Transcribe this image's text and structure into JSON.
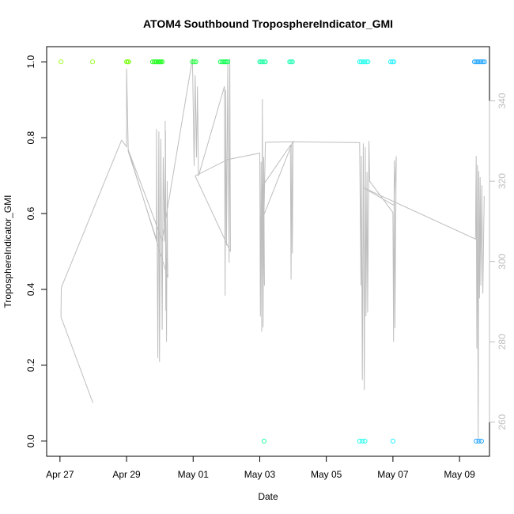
{
  "chart_data": {
    "type": "scatter",
    "title": "ATOM4 Southbound TroposphereIndicator_GMI",
    "xlabel": "Date",
    "ylabel": "TroposphereIndicator_GMI",
    "x_ticks": [
      {
        "day": 0,
        "label": "Apr 27"
      },
      {
        "day": 2,
        "label": "Apr 29"
      },
      {
        "day": 4,
        "label": "May 01"
      },
      {
        "day": 6,
        "label": "May 03"
      },
      {
        "day": 8,
        "label": "May 05"
      },
      {
        "day": 10,
        "label": "May 07"
      },
      {
        "day": 12,
        "label": "May 09"
      }
    ],
    "xlim": [
      -0.4,
      12.9
    ],
    "ylim": [
      -0.04,
      1.04
    ],
    "y_ticks": [
      "0.0",
      "0.2",
      "0.4",
      "0.6",
      "0.8",
      "1.0"
    ],
    "y2lim": [
      251.5,
      353.5
    ],
    "y2_ticks": [
      "260",
      "280",
      "300",
      "320",
      "340"
    ],
    "grid": false,
    "colors": {
      "secondary_line": "#bebebe",
      "axes": "#000000",
      "secondary_axis": "#bebebe"
    },
    "series": [
      {
        "points": [
          {
            "x": 0.03,
            "y": 1,
            "color": "#a6ff2e"
          },
          {
            "x": 0.98,
            "y": 1,
            "color": "#a0ff30"
          },
          {
            "x": 2.0,
            "y": 1,
            "color": "#7fff1a"
          },
          {
            "x": 2.04,
            "y": 1,
            "color": "#7fff1a"
          },
          {
            "x": 2.06,
            "y": 1,
            "color": "#7fff1a"
          },
          {
            "x": 2.78,
            "y": 1,
            "color": "#33ff2e"
          },
          {
            "x": 2.83,
            "y": 1,
            "color": "#33ff2e"
          },
          {
            "x": 2.87,
            "y": 1,
            "color": "#33ff2e"
          },
          {
            "x": 2.9,
            "y": 1,
            "color": "#33ff2e"
          },
          {
            "x": 2.94,
            "y": 1,
            "color": "#33ff2e"
          },
          {
            "x": 2.97,
            "y": 1,
            "color": "#2eff2e"
          },
          {
            "x": 3.0,
            "y": 1,
            "color": "#2eff2e"
          },
          {
            "x": 3.03,
            "y": 1,
            "color": "#2eff2e"
          },
          {
            "x": 3.07,
            "y": 1,
            "color": "#2eff2e"
          },
          {
            "x": 3.98,
            "y": 1,
            "color": "#2eff4a"
          },
          {
            "x": 4.03,
            "y": 1,
            "color": "#2eff4a"
          },
          {
            "x": 4.08,
            "y": 1,
            "color": "#2eff4a"
          },
          {
            "x": 4.82,
            "y": 1,
            "color": "#1aff5a"
          },
          {
            "x": 4.87,
            "y": 1,
            "color": "#1aff5a"
          },
          {
            "x": 4.92,
            "y": 1,
            "color": "#1aff5a"
          },
          {
            "x": 4.96,
            "y": 1,
            "color": "#1aff5a"
          },
          {
            "x": 5.0,
            "y": 1,
            "color": "#1aff5a"
          },
          {
            "x": 5.04,
            "y": 1,
            "color": "#1aff5a"
          },
          {
            "x": 6.0,
            "y": 1,
            "color": "#2effaa"
          },
          {
            "x": 6.04,
            "y": 1,
            "color": "#2effaa"
          },
          {
            "x": 6.08,
            "y": 1,
            "color": "#2effaa"
          },
          {
            "x": 6.13,
            "y": 1,
            "color": "#2effaa"
          },
          {
            "x": 6.17,
            "y": 1,
            "color": "#2effaa"
          },
          {
            "x": 6.13,
            "y": 0,
            "color": "#2effaa"
          },
          {
            "x": 6.9,
            "y": 1,
            "color": "#2effb8"
          },
          {
            "x": 6.94,
            "y": 1,
            "color": "#2effb8"
          },
          {
            "x": 6.98,
            "y": 1,
            "color": "#2effb8"
          },
          {
            "x": 9.0,
            "y": 1,
            "color": "#2effee"
          },
          {
            "x": 9.05,
            "y": 1,
            "color": "#2effee"
          },
          {
            "x": 9.1,
            "y": 1,
            "color": "#2effee"
          },
          {
            "x": 9.15,
            "y": 1,
            "color": "#2effee"
          },
          {
            "x": 9.2,
            "y": 1,
            "color": "#2effee"
          },
          {
            "x": 9.25,
            "y": 1,
            "color": "#2effee"
          },
          {
            "x": 9.0,
            "y": 0,
            "color": "#2effee"
          },
          {
            "x": 9.08,
            "y": 0,
            "color": "#2effee"
          },
          {
            "x": 9.16,
            "y": 0,
            "color": "#2effee"
          },
          {
            "x": 9.93,
            "y": 1,
            "color": "#2ef0ff"
          },
          {
            "x": 9.98,
            "y": 1,
            "color": "#2ef0ff"
          },
          {
            "x": 10.03,
            "y": 1,
            "color": "#2ef0ff"
          },
          {
            "x": 10.0,
            "y": 0,
            "color": "#2ef0ff"
          },
          {
            "x": 12.45,
            "y": 1,
            "color": "#2eaaff"
          },
          {
            "x": 12.5,
            "y": 1,
            "color": "#2eaaff"
          },
          {
            "x": 12.55,
            "y": 1,
            "color": "#2eaaff"
          },
          {
            "x": 12.6,
            "y": 1,
            "color": "#2eaaff"
          },
          {
            "x": 12.65,
            "y": 1,
            "color": "#2eaaff"
          },
          {
            "x": 12.7,
            "y": 1,
            "color": "#2eaaff"
          },
          {
            "x": 12.75,
            "y": 1,
            "color": "#2eaaff"
          },
          {
            "x": 12.5,
            "y": 0,
            "color": "#2eaaff"
          },
          {
            "x": 12.58,
            "y": 0,
            "color": "#2eaaff"
          },
          {
            "x": 12.66,
            "y": 0,
            "color": "#2eaaff"
          }
        ]
      },
      {
        "type": "line",
        "axis": "right",
        "color": "#bebebe",
        "points": [
          [
            0.99,
            264.8
          ],
          [
            0.03,
            286.2
          ],
          [
            0.04,
            293.5
          ],
          [
            1.85,
            330.2
          ],
          [
            2.0,
            328.6
          ],
          [
            2.0,
            348.0
          ],
          [
            2.05,
            327.4
          ],
          [
            2.9,
            305.5
          ],
          [
            2.9,
            333.0
          ],
          [
            2.94,
            276.0
          ],
          [
            2.97,
            332.4
          ],
          [
            2.99,
            275.0
          ],
          [
            3.03,
            330.5
          ],
          [
            3.07,
            283.0
          ],
          [
            3.1,
            326.0
          ],
          [
            3.14,
            305.0
          ],
          [
            3.17,
            332.5
          ],
          [
            3.18,
            287.8
          ],
          [
            3.16,
            335.0
          ],
          [
            3.2,
            280.0
          ],
          [
            3.22,
            320.0
          ],
          [
            3.23,
            301.0
          ],
          [
            3.24,
            296.0
          ],
          [
            2.05,
            327.8
          ],
          [
            3.07,
            305.3
          ],
          [
            3.98,
            350.5
          ],
          [
            4.03,
            323.8
          ],
          [
            4.06,
            346.4
          ],
          [
            4.1,
            325.9
          ],
          [
            4.13,
            343.6
          ],
          [
            4.16,
            321.3
          ],
          [
            4.94,
            343.6
          ],
          [
            4.96,
            291.5
          ],
          [
            4.98,
            342.7
          ],
          [
            5.0,
            304.0
          ],
          [
            5.04,
            349.2
          ],
          [
            5.08,
            299.7
          ],
          [
            5.1,
            350.5
          ],
          [
            5.12,
            302.5
          ],
          [
            4.06,
            321.3
          ],
          [
            5.04,
            325.4
          ],
          [
            6.0,
            327.0
          ],
          [
            6.02,
            286.3
          ],
          [
            6.04,
            324.8
          ],
          [
            6.06,
            282.5
          ],
          [
            6.08,
            340.5
          ],
          [
            6.1,
            283.6
          ],
          [
            6.12,
            326.0
          ],
          [
            6.14,
            294.0
          ],
          [
            6.1,
            319.0
          ],
          [
            6.92,
            328.9
          ],
          [
            6.94,
            295.5
          ],
          [
            6.96,
            329.3
          ],
          [
            6.98,
            302.0
          ],
          [
            7.0,
            330.0
          ],
          [
            6.13,
            311.7
          ],
          [
            6.17,
            329.7
          ],
          [
            7.03,
            329.8
          ],
          [
            9.0,
            329.6
          ],
          [
            9.04,
            294.0
          ],
          [
            9.05,
            326.3
          ],
          [
            9.08,
            270.5
          ],
          [
            9.11,
            329.4
          ],
          [
            9.14,
            268.0
          ],
          [
            9.17,
            328.5
          ],
          [
            9.19,
            286.4
          ],
          [
            9.22,
            322.3
          ],
          [
            9.24,
            287.3
          ],
          [
            9.28,
            330.0
          ],
          [
            9.3,
            320.0
          ],
          [
            10.0,
            312.2
          ],
          [
            10.02,
            280.0
          ],
          [
            10.04,
            325.2
          ],
          [
            10.06,
            283.4
          ],
          [
            10.1,
            326.2
          ],
          [
            10.03,
            314.0
          ],
          [
            9.11,
            318.4
          ],
          [
            12.48,
            305.6
          ],
          [
            12.5,
            326.3
          ],
          [
            12.52,
            278.3
          ],
          [
            12.54,
            324.0
          ],
          [
            12.56,
            255.8
          ],
          [
            12.58,
            322.5
          ],
          [
            12.6,
            290.8
          ],
          [
            12.62,
            321.0
          ],
          [
            12.64,
            294.0
          ],
          [
            12.67,
            319.0
          ],
          [
            12.7,
            292.0
          ],
          [
            12.74,
            316.3
          ]
        ]
      }
    ]
  }
}
